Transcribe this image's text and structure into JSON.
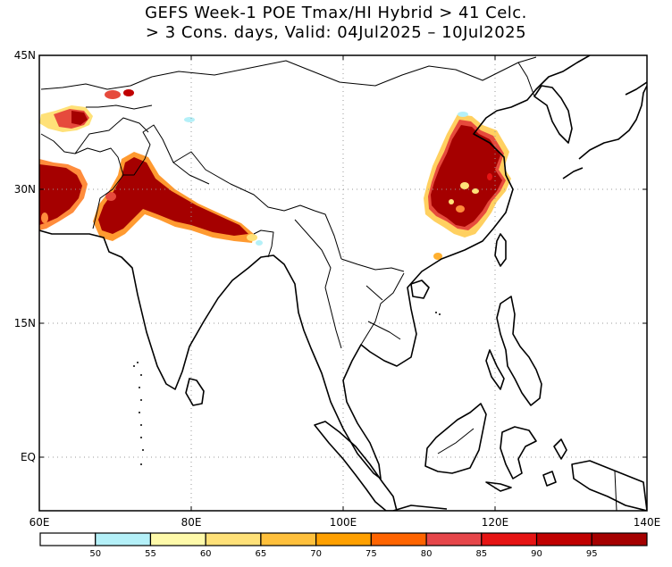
{
  "title": {
    "line1": "GEFS Week-1 POE Tmax/HI Hybrid > 41 Celc.",
    "line2": "> 3 Cons. days, Valid: 04Jul2025 – 10Jul2025"
  },
  "map": {
    "lon_range": [
      60,
      140
    ],
    "lat_range": [
      -6,
      45
    ],
    "lon_ticks": [
      {
        "value": 60,
        "label": "60E"
      },
      {
        "value": 80,
        "label": "80E"
      },
      {
        "value": 100,
        "label": "100E"
      },
      {
        "value": 120,
        "label": "120E"
      },
      {
        "value": 140,
        "label": "140E"
      }
    ],
    "lat_ticks": [
      {
        "value": 45,
        "label": "45N"
      },
      {
        "value": 30,
        "label": "30N"
      },
      {
        "value": 15,
        "label": "15N"
      },
      {
        "value": 0,
        "label": "EQ"
      }
    ],
    "gridlines": true
  },
  "colorbar": {
    "colors": [
      "#ffffff",
      "#b4f0f8",
      "#fffaaa",
      "#ffe178",
      "#ffc03c",
      "#ffa000",
      "#ff6400",
      "#e6464a",
      "#e61414",
      "#c00000",
      "#a50000"
    ],
    "labels": [
      "50",
      "55",
      "60",
      "65",
      "70",
      "75",
      "80",
      "85",
      "90",
      "95"
    ]
  }
}
